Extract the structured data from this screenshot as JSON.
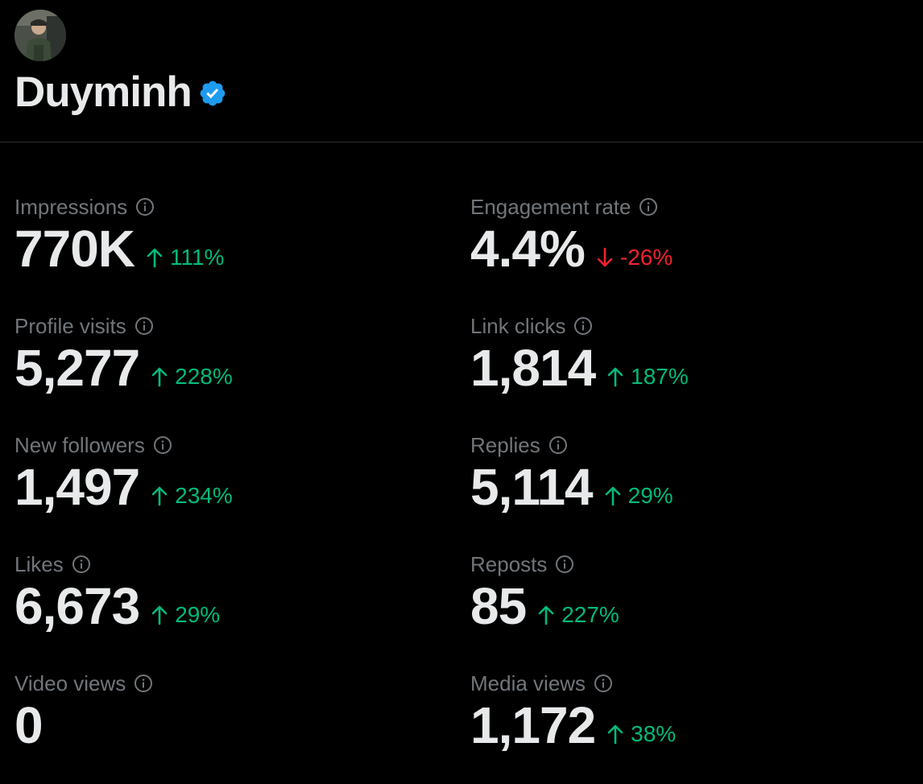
{
  "profile": {
    "display_name": "Duyminh",
    "verified": true,
    "avatar_icon": "user-avatar",
    "verified_icon": "verified-badge-icon",
    "verified_color": "#1d9bf0"
  },
  "colors": {
    "background": "#000000",
    "label": "#71767b",
    "value": "#e7e9ea",
    "trend_up": "#00ba7c",
    "trend_down": "#f4212e",
    "divider": "#2f3336"
  },
  "metrics": {
    "impressions": {
      "label": "Impressions",
      "value": "770K",
      "change": "111%",
      "direction": "up"
    },
    "engagement_rate": {
      "label": "Engagement rate",
      "value": "4.4%",
      "change": "-26%",
      "direction": "down"
    },
    "profile_visits": {
      "label": "Profile visits",
      "value": "5,277",
      "change": "228%",
      "direction": "up"
    },
    "link_clicks": {
      "label": "Link clicks",
      "value": "1,814",
      "change": "187%",
      "direction": "up"
    },
    "new_followers": {
      "label": "New followers",
      "value": "1,497",
      "change": "234%",
      "direction": "up"
    },
    "replies": {
      "label": "Replies",
      "value": "5,114",
      "change": "29%",
      "direction": "up"
    },
    "likes": {
      "label": "Likes",
      "value": "6,673",
      "change": "29%",
      "direction": "up"
    },
    "reposts": {
      "label": "Reposts",
      "value": "85",
      "change": "227%",
      "direction": "up"
    },
    "video_views": {
      "label": "Video views",
      "value": "0",
      "change": null,
      "direction": null
    },
    "media_views": {
      "label": "Media views",
      "value": "1,172",
      "change": "38%",
      "direction": "up"
    }
  }
}
